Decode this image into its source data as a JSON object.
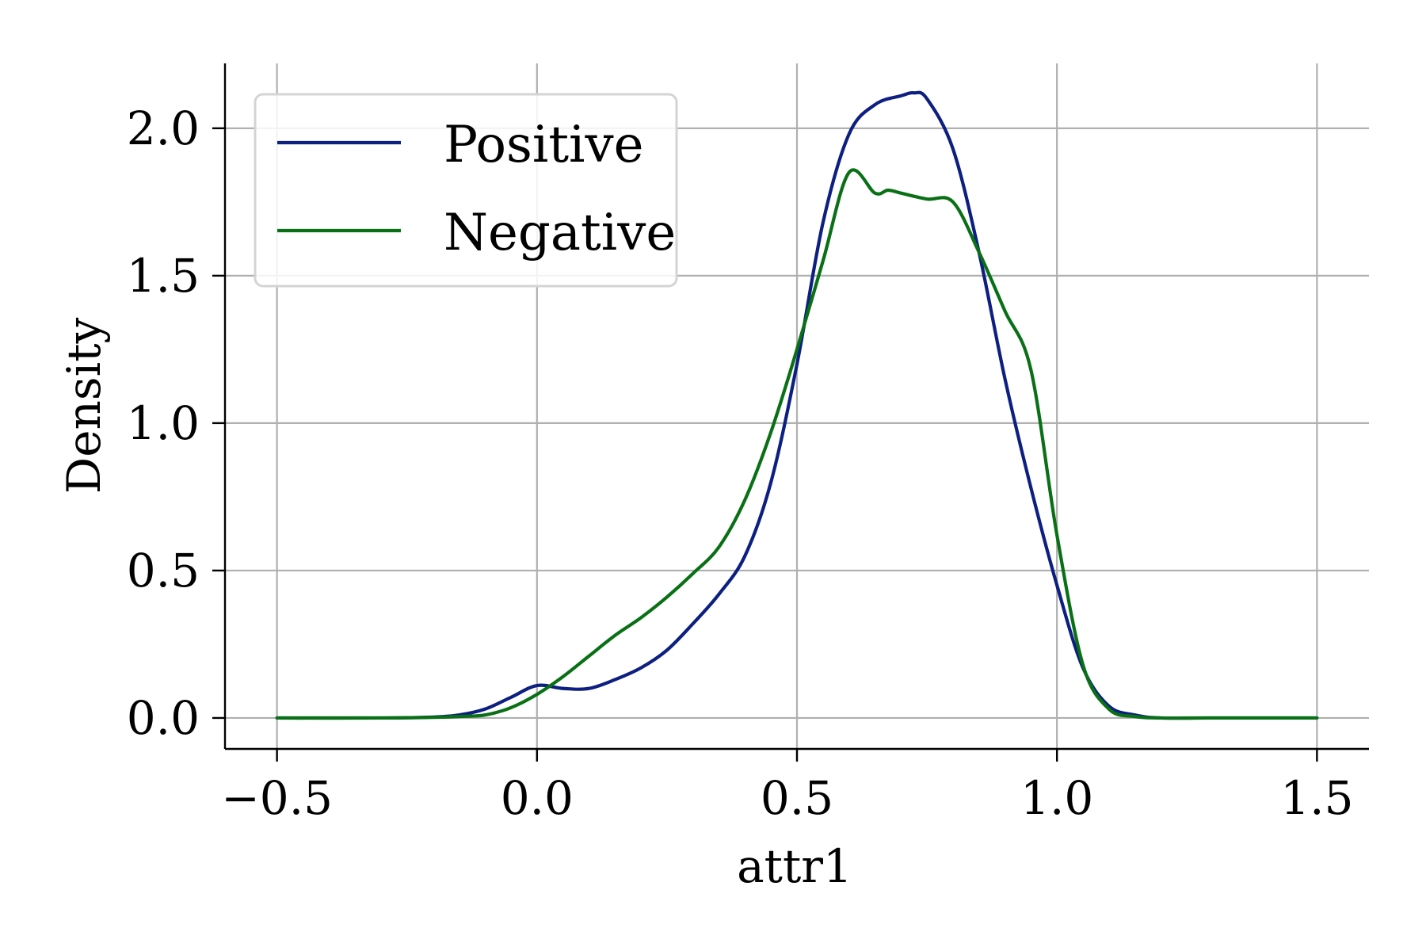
{
  "chart_data": {
    "type": "line",
    "xlabel": "attr1",
    "ylabel": "Density",
    "xlim": [
      -0.6,
      1.6
    ],
    "ylim": [
      -0.105,
      2.22
    ],
    "xticks": [
      -0.5,
      0.0,
      0.5,
      1.0,
      1.5
    ],
    "xtick_labels": [
      "−0.5",
      "0.0",
      "0.5",
      "1.0",
      "1.5"
    ],
    "yticks": [
      0.0,
      0.5,
      1.0,
      1.5,
      2.0
    ],
    "ytick_labels": [
      "0.0",
      "0.5",
      "1.0",
      "1.5",
      "2.0"
    ],
    "grid": true,
    "legend": {
      "placement": "top-left"
    },
    "series": [
      {
        "name": "Positive",
        "color": "#0d1f80",
        "x": [
          -0.5,
          -0.3,
          -0.2,
          -0.15,
          -0.1,
          -0.05,
          0.0,
          0.05,
          0.1,
          0.15,
          0.2,
          0.25,
          0.3,
          0.35,
          0.4,
          0.45,
          0.5,
          0.55,
          0.6,
          0.65,
          0.7,
          0.725,
          0.75,
          0.8,
          0.85,
          0.9,
          0.95,
          1.0,
          1.05,
          1.1,
          1.15,
          1.2,
          1.3,
          1.5
        ],
        "y": [
          0.0,
          0.0,
          0.003,
          0.01,
          0.03,
          0.07,
          0.11,
          0.1,
          0.1,
          0.13,
          0.17,
          0.23,
          0.32,
          0.42,
          0.55,
          0.8,
          1.2,
          1.68,
          1.98,
          2.08,
          2.11,
          2.12,
          2.1,
          1.93,
          1.58,
          1.15,
          0.78,
          0.45,
          0.17,
          0.04,
          0.01,
          0.0,
          0.0,
          0.0
        ]
      },
      {
        "name": "Negative",
        "color": "#0a7016",
        "x": [
          -0.5,
          -0.3,
          -0.2,
          -0.15,
          -0.1,
          -0.05,
          0.0,
          0.05,
          0.1,
          0.15,
          0.2,
          0.25,
          0.3,
          0.35,
          0.4,
          0.45,
          0.5,
          0.55,
          0.6,
          0.65,
          0.675,
          0.7,
          0.75,
          0.8,
          0.85,
          0.9,
          0.95,
          1.0,
          1.05,
          1.1,
          1.15,
          1.2,
          1.3,
          1.5
        ],
        "y": [
          0.0,
          0.0,
          0.002,
          0.005,
          0.01,
          0.035,
          0.08,
          0.14,
          0.21,
          0.28,
          0.34,
          0.41,
          0.49,
          0.58,
          0.74,
          0.97,
          1.25,
          1.55,
          1.85,
          1.78,
          1.79,
          1.78,
          1.76,
          1.75,
          1.58,
          1.38,
          1.18,
          0.62,
          0.18,
          0.03,
          0.005,
          0.0,
          0.0,
          0.0
        ]
      }
    ]
  }
}
